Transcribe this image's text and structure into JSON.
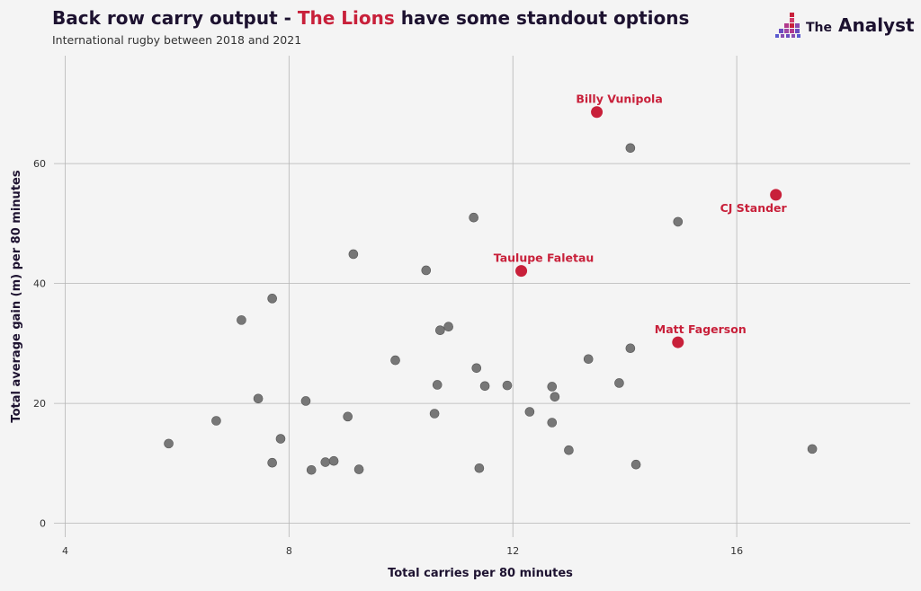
{
  "header": {
    "title_prefix": "Back row carry output - ",
    "title_highlight": "The Lions",
    "title_suffix": " have some standout options",
    "subtitle": "International rugby between 2018 and 2021"
  },
  "brand": {
    "name_small": "The",
    "name_big": "Analyst"
  },
  "colors": {
    "highlight": "#c8203a",
    "points": "#777777",
    "title": "#1d1230",
    "grid": "#b5b5b5"
  },
  "chart_data": {
    "type": "scatter",
    "xlabel": "Total carries per 80 minutes",
    "ylabel": "Total average gain (m) per 80 minutes",
    "xlim": [
      3.8,
      19.1
    ],
    "ylim": [
      -2.3,
      78
    ],
    "xticks": [
      4,
      8,
      12,
      16
    ],
    "yticks": [
      0,
      20,
      40,
      60
    ],
    "grid": true,
    "points": [
      {
        "x": 5.85,
        "y": 13.3
      },
      {
        "x": 6.7,
        "y": 17.1
      },
      {
        "x": 7.15,
        "y": 33.9
      },
      {
        "x": 7.45,
        "y": 20.8
      },
      {
        "x": 7.7,
        "y": 37.5
      },
      {
        "x": 7.7,
        "y": 10.1
      },
      {
        "x": 7.85,
        "y": 14.1
      },
      {
        "x": 8.3,
        "y": 20.4
      },
      {
        "x": 8.4,
        "y": 8.9
      },
      {
        "x": 8.65,
        "y": 10.2
      },
      {
        "x": 8.8,
        "y": 10.4
      },
      {
        "x": 9.05,
        "y": 17.8
      },
      {
        "x": 9.15,
        "y": 44.9
      },
      {
        "x": 9.25,
        "y": 9.0
      },
      {
        "x": 9.9,
        "y": 27.2
      },
      {
        "x": 10.45,
        "y": 42.2
      },
      {
        "x": 10.6,
        "y": 18.3
      },
      {
        "x": 10.65,
        "y": 23.1
      },
      {
        "x": 10.7,
        "y": 32.2
      },
      {
        "x": 10.85,
        "y": 32.8
      },
      {
        "x": 11.3,
        "y": 51.0
      },
      {
        "x": 11.35,
        "y": 25.9
      },
      {
        "x": 11.4,
        "y": 9.2
      },
      {
        "x": 11.5,
        "y": 22.9
      },
      {
        "x": 11.9,
        "y": 23.0
      },
      {
        "x": 12.3,
        "y": 18.6
      },
      {
        "x": 12.7,
        "y": 22.8
      },
      {
        "x": 12.7,
        "y": 16.8
      },
      {
        "x": 12.75,
        "y": 21.1
      },
      {
        "x": 13.0,
        "y": 12.2
      },
      {
        "x": 13.35,
        "y": 27.4
      },
      {
        "x": 13.9,
        "y": 23.4
      },
      {
        "x": 14.1,
        "y": 62.6
      },
      {
        "x": 14.1,
        "y": 29.2
      },
      {
        "x": 14.2,
        "y": 9.8
      },
      {
        "x": 14.95,
        "y": 50.3
      },
      {
        "x": 17.35,
        "y": 12.4
      }
    ],
    "highlighted": [
      {
        "name": "Billy Vunipola",
        "x": 13.5,
        "y": 68.6,
        "label_pos": "above"
      },
      {
        "name": "CJ Stander",
        "x": 16.7,
        "y": 54.8,
        "label_pos": "below"
      },
      {
        "name": "Taulupe Faletau",
        "x": 12.15,
        "y": 42.1,
        "label_pos": "above"
      },
      {
        "name": "Matt Fagerson",
        "x": 14.95,
        "y": 30.2,
        "label_pos": "above"
      }
    ]
  }
}
